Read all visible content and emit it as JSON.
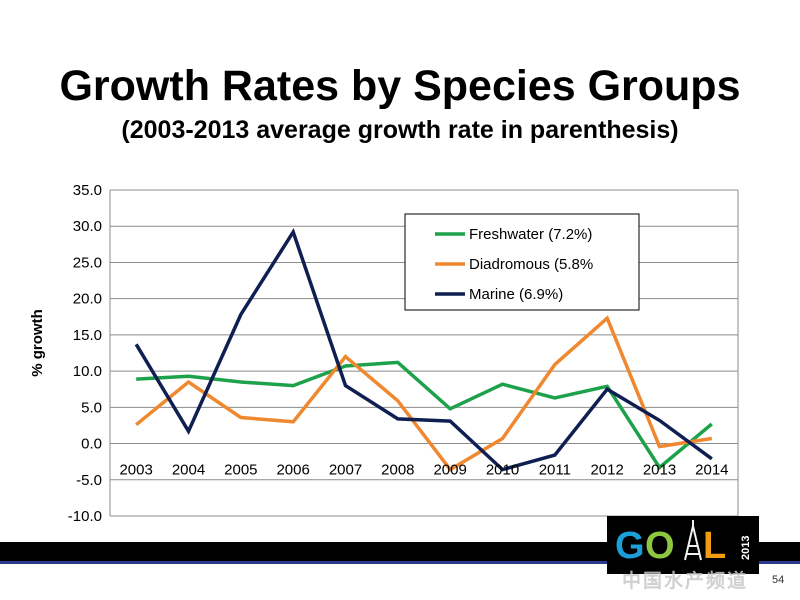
{
  "slide": {
    "title": "Growth Rates by Species Groups",
    "subtitle": "(2003-2013 average growth rate in parenthesis)",
    "page_number": "54",
    "watermark_text": "中国水产频道"
  },
  "logo": {
    "text": "GOAL",
    "year": "2013",
    "colors": {
      "G": "#1a9fd8",
      "O": "#8dc63f",
      "A": "#f39c12",
      "L": "#e0e0e0"
    }
  },
  "chart_data": {
    "type": "line",
    "title": "",
    "xlabel": "",
    "ylabel": "% growth",
    "categories": [
      "2003",
      "2004",
      "2005",
      "2006",
      "2007",
      "2008",
      "2009",
      "2010",
      "2011",
      "2012",
      "2013",
      "2014"
    ],
    "ylim": [
      -10.0,
      35.0
    ],
    "yticks": [
      "-10.0",
      "-5.0",
      "0.0",
      "5.0",
      "10.0",
      "15.0",
      "20.0",
      "25.0",
      "30.0",
      "35.0"
    ],
    "grid": true,
    "legend_position": "top-right",
    "series": [
      {
        "name": "Freshwater (7.2%)",
        "color": "#1ea14b",
        "values": [
          8.9,
          9.3,
          8.5,
          8.0,
          10.7,
          11.2,
          4.8,
          8.2,
          6.3,
          7.9,
          -3.3,
          2.7
        ]
      },
      {
        "name": "Diadromous (5.8%",
        "color": "#f0882f",
        "values": [
          2.6,
          8.5,
          3.6,
          3.0,
          12.0,
          5.9,
          -3.6,
          0.7,
          10.9,
          17.3,
          -0.4,
          0.7
        ]
      },
      {
        "name": "Marine (6.9%)",
        "color": "#0f1f52",
        "values": [
          13.7,
          1.7,
          17.8,
          29.2,
          8.0,
          3.4,
          3.1,
          -3.6,
          -1.6,
          7.5,
          3.2,
          -2.1
        ]
      }
    ]
  }
}
